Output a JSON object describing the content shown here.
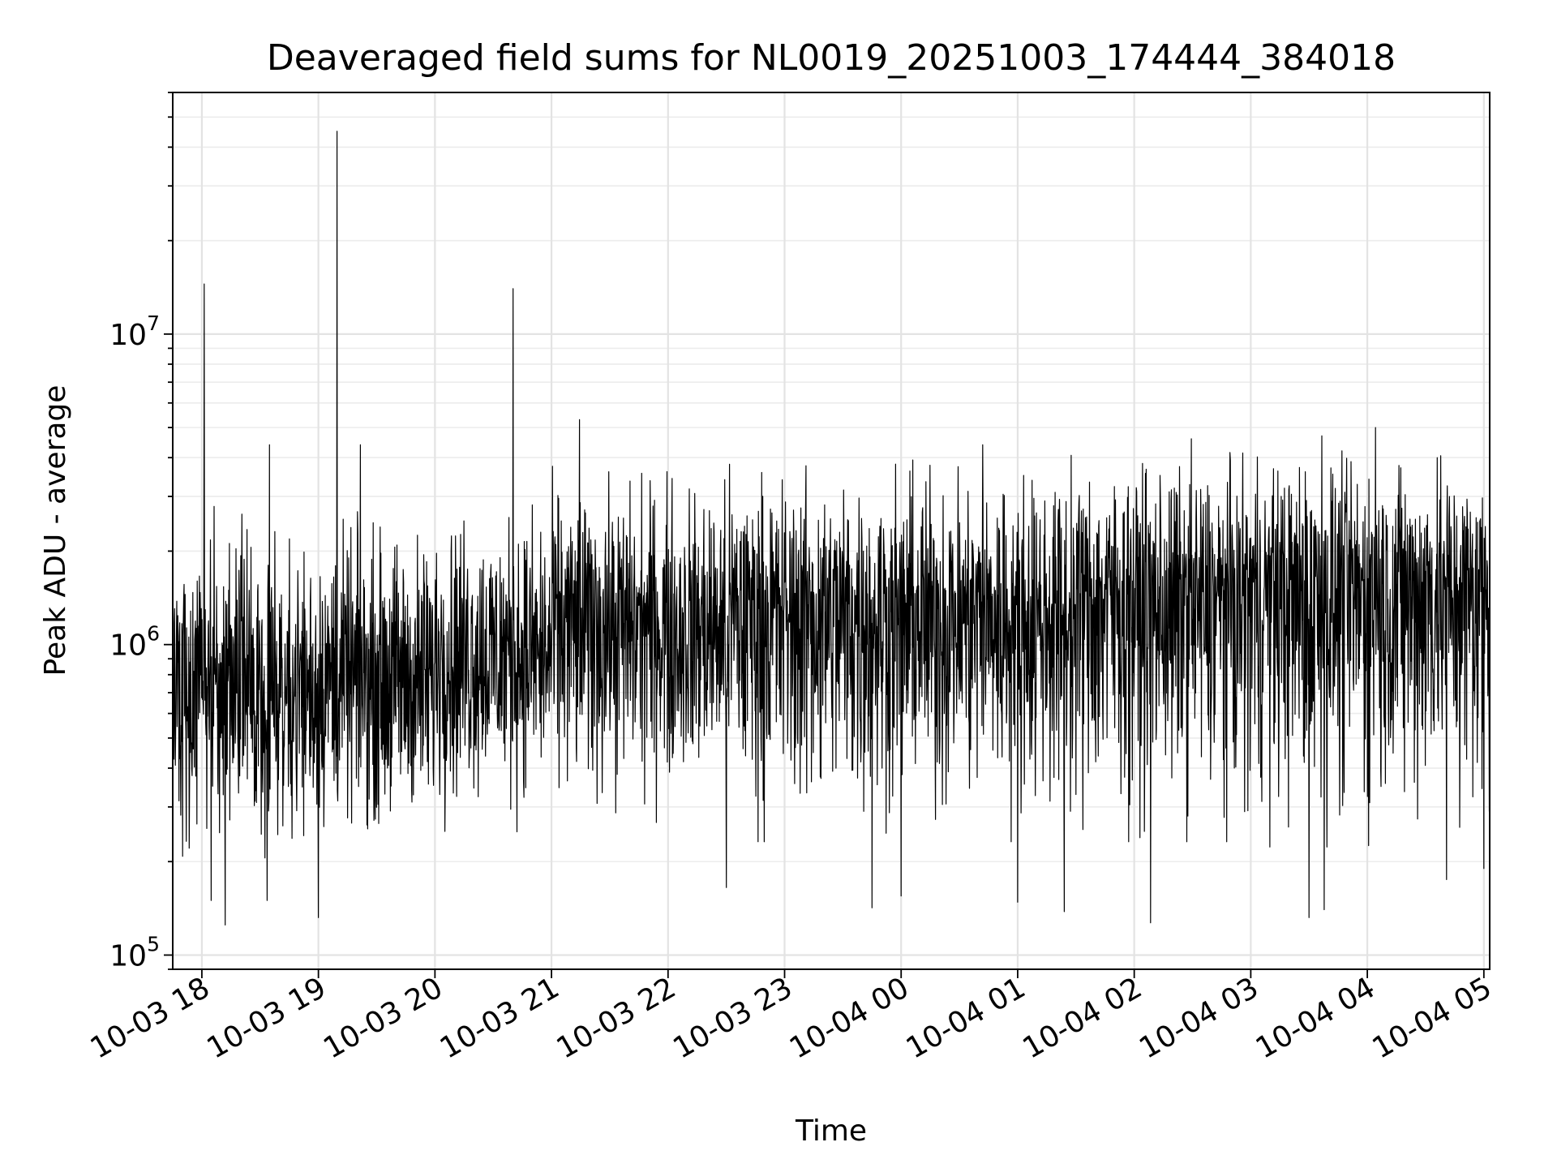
{
  "chart_data": {
    "type": "line",
    "title": "Deaveraged field sums for NL0019_20251003_174444_384018",
    "xlabel": "Time",
    "ylabel": "Peak ADU - average",
    "yscale": "log",
    "ylim": [
      90000,
      60000000
    ],
    "xlim_hours_since_1800": [
      -0.25,
      11.05
    ],
    "x_unit": "hours after 2025-10-03 18:00",
    "grid": true,
    "x_ticks": [
      {
        "value": 0,
        "label": "10-03 18"
      },
      {
        "value": 1,
        "label": "10-03 19"
      },
      {
        "value": 2,
        "label": "10-03 20"
      },
      {
        "value": 3,
        "label": "10-03 21"
      },
      {
        "value": 4,
        "label": "10-03 22"
      },
      {
        "value": 5,
        "label": "10-03 23"
      },
      {
        "value": 6,
        "label": "10-04 00"
      },
      {
        "value": 7,
        "label": "10-04 01"
      },
      {
        "value": 8,
        "label": "10-04 02"
      },
      {
        "value": 9,
        "label": "10-04 03"
      },
      {
        "value": 10,
        "label": "10-04 04"
      },
      {
        "value": 11,
        "label": "10-04 05"
      }
    ],
    "y_ticks": [
      {
        "value": 100000,
        "base": "10",
        "exp": "5"
      },
      {
        "value": 1000000,
        "base": "10",
        "exp": "6"
      },
      {
        "value": 10000000,
        "base": "10",
        "exp": "7"
      }
    ],
    "series": [
      {
        "name": "deaveraged field sum",
        "color": "#000000",
        "segments": [
          {
            "start": -0.25,
            "end": 1.0,
            "median": 700000,
            "low": 220000,
            "high": 2600000
          },
          {
            "start": 1.0,
            "end": 2.0,
            "median": 750000,
            "low": 250000,
            "high": 2500000
          },
          {
            "start": 2.0,
            "end": 3.0,
            "median": 950000,
            "low": 280000,
            "high": 2800000
          },
          {
            "start": 3.0,
            "end": 4.5,
            "median": 1150000,
            "low": 300000,
            "high": 3500000
          },
          {
            "start": 4.5,
            "end": 7.5,
            "median": 1250000,
            "low": 260000,
            "high": 3800000
          },
          {
            "start": 7.5,
            "end": 9.0,
            "median": 1400000,
            "low": 260000,
            "high": 4000000
          },
          {
            "start": 9.0,
            "end": 11.05,
            "median": 1500000,
            "low": 250000,
            "high": 4200000
          }
        ],
        "spikes": [
          {
            "x": 0.02,
            "y": 14500000
          },
          {
            "x": 1.16,
            "y": 45000000
          },
          {
            "x": 2.67,
            "y": 14000000
          },
          {
            "x": 3.24,
            "y": 5300000
          },
          {
            "x": 10.07,
            "y": 5000000
          },
          {
            "x": 9.61,
            "y": 4700000
          },
          {
            "x": 0.58,
            "y": 4400000
          },
          {
            "x": 1.36,
            "y": 4400000
          },
          {
            "x": 6.7,
            "y": 4400000
          },
          {
            "x": 8.49,
            "y": 4600000
          },
          {
            "x": 10.6,
            "y": 4000000
          }
        ],
        "dips": [
          {
            "x": 0.2,
            "y": 125000
          },
          {
            "x": 0.08,
            "y": 150000
          },
          {
            "x": 0.56,
            "y": 150000
          },
          {
            "x": 1.0,
            "y": 132000
          },
          {
            "x": 5.75,
            "y": 142000
          },
          {
            "x": 6.0,
            "y": 155000
          },
          {
            "x": 7.0,
            "y": 148000
          },
          {
            "x": 7.4,
            "y": 138000
          },
          {
            "x": 8.14,
            "y": 127000
          },
          {
            "x": 9.5,
            "y": 132000
          },
          {
            "x": 9.63,
            "y": 140000
          },
          {
            "x": 4.5,
            "y": 165000
          },
          {
            "x": 10.68,
            "y": 175000
          },
          {
            "x": 11.0,
            "y": 190000
          }
        ]
      }
    ]
  }
}
